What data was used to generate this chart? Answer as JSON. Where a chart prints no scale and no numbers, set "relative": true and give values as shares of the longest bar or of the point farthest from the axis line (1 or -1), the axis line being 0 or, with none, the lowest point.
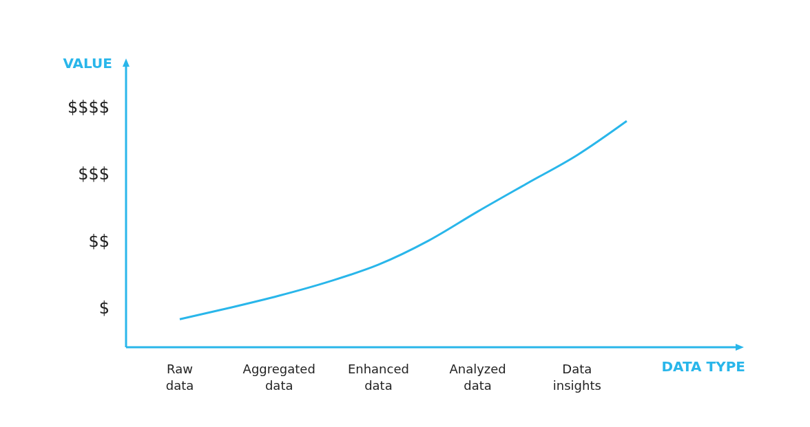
{
  "chart_data": {
    "type": "line",
    "xlabel": "DATA TYPE",
    "ylabel": "VALUE",
    "relative": true,
    "categories": [
      "Raw data",
      null,
      "Aggregated data",
      null,
      "Enhanced data",
      null,
      "Analyzed data",
      null,
      "Data insights",
      null
    ],
    "annotations": [
      "$",
      "$$",
      "$$$",
      "$$$$"
    ],
    "series": [
      {
        "color": "#29b6ea",
        "values": [
          0.124,
          0.174,
          0.228,
          0.29,
          0.365,
          0.47,
          0.6,
          0.725,
          0.849,
          1
        ]
      }
    ],
    "marker": "none",
    "line_style": "solid"
  }
}
